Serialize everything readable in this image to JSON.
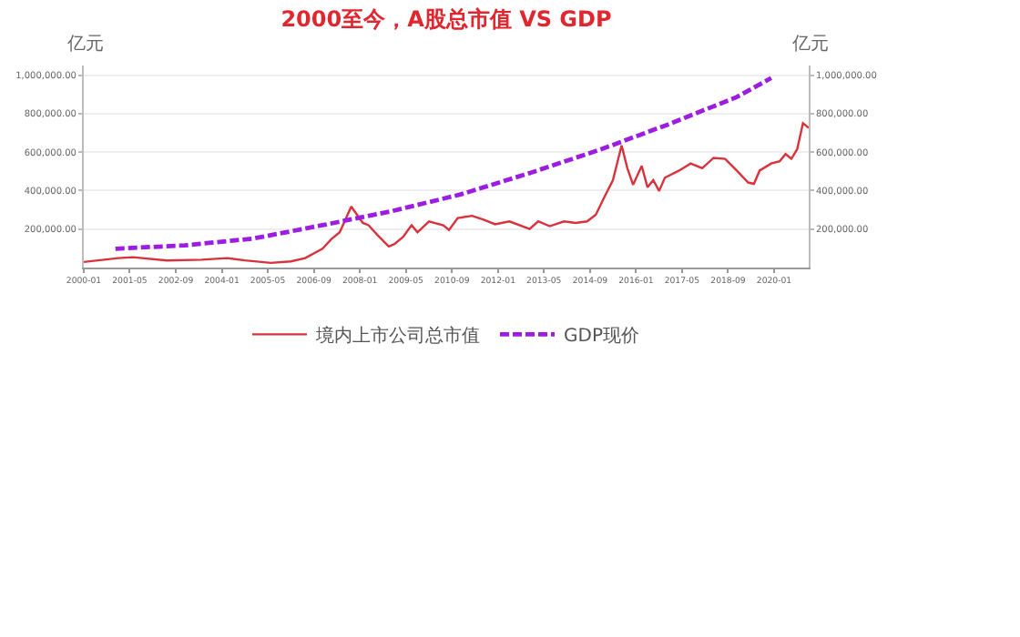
{
  "chart_data": {
    "type": "line",
    "title": "2000至今，A股总市值 VS GDP",
    "ylabel": "亿元",
    "y2label": "亿元",
    "series": [
      {
        "name": "境内上市公司总市值",
        "color": "#d8323c",
        "line_style": "solid",
        "x": [
          "2000-01",
          "2001-01",
          "2001-06",
          "2002-06",
          "2003-06",
          "2004-03",
          "2004-09",
          "2005-06",
          "2006-01",
          "2006-06",
          "2006-12",
          "2007-03",
          "2007-06",
          "2007-10",
          "2008-02",
          "2008-04",
          "2008-07",
          "2008-11",
          "2009-01",
          "2009-04",
          "2009-07",
          "2009-09",
          "2010-01",
          "2010-06",
          "2010-08",
          "2010-11",
          "2011-04",
          "2011-08",
          "2011-12",
          "2012-05",
          "2012-12",
          "2013-03",
          "2013-07",
          "2013-12",
          "2014-04",
          "2014-08",
          "2014-11",
          "2015-02",
          "2015-05",
          "2015-08",
          "2015-10",
          "2015-12",
          "2016-03",
          "2016-05",
          "2016-07",
          "2016-09",
          "2016-11",
          "2017-04",
          "2017-08",
          "2017-12",
          "2018-04",
          "2018-08",
          "2018-12",
          "2019-04",
          "2019-06",
          "2019-08",
          "2019-12",
          "2020-03",
          "2020-05",
          "2020-07",
          "2020-09",
          "2020-11",
          "2021-01"
        ],
        "values": [
          29000,
          49000,
          54000,
          37000,
          41000,
          49000,
          37000,
          24000,
          32000,
          49000,
          98000,
          146000,
          183000,
          317000,
          232000,
          220000,
          171000,
          110000,
          122000,
          159000,
          220000,
          183000,
          240000,
          220000,
          195000,
          257000,
          269000,
          249000,
          225000,
          240000,
          200000,
          240000,
          215000,
          240000,
          232000,
          240000,
          274000,
          368000,
          454000,
          635000,
          516000,
          430000,
          528000,
          417000,
          454000,
          398000,
          467000,
          504000,
          541000,
          516000,
          570000,
          565000,
          504000,
          442000,
          435000,
          504000,
          541000,
          553000,
          590000,
          565000,
          615000,
          750000,
          726000
        ]
      },
      {
        "name": "GDP现价",
        "color": "#9c1de0",
        "line_style": "dashed",
        "axis": "y2",
        "x": [
          "2000-12",
          "2002-12",
          "2004-12",
          "2006-12",
          "2008-12",
          "2010-12",
          "2012-12",
          "2014-12",
          "2016-12",
          "2018-12",
          "2019-12"
        ],
        "values": [
          98000,
          115000,
          151000,
          220000,
          293000,
          380000,
          491000,
          610000,
          743000,
          886000,
          985000
        ]
      }
    ],
    "xlim": [
      "2000-01",
      "2021-01"
    ],
    "xticks": [
      "2000-01",
      "2001-05",
      "2002-09",
      "2004-01",
      "2005-05",
      "2006-09",
      "2008-01",
      "2009-05",
      "2010-09",
      "2012-01",
      "2013-05",
      "2014-09",
      "2016-01",
      "2017-05",
      "2018-09",
      "2020-01"
    ],
    "ylim": [
      0,
      1050000
    ],
    "yticks": [
      {
        "value": 200000,
        "label": "200,000.00"
      },
      {
        "value": 400000,
        "label": "400,000.00"
      },
      {
        "value": 600000,
        "label": "600,000.00"
      },
      {
        "value": 800000,
        "label": "800,000.00"
      },
      {
        "value": 1000000,
        "label": "1,000,000.00"
      }
    ],
    "y2lim": [
      0,
      1050000
    ],
    "y2ticks": [
      {
        "value": 200000,
        "label": "200,000.00"
      },
      {
        "value": 400000,
        "label": "400,000.00"
      },
      {
        "value": 600000,
        "label": "600,000.00"
      },
      {
        "value": 800000,
        "label": "800,000.00"
      },
      {
        "value": 1000000,
        "label": "1,000,000.00"
      }
    ],
    "grid": "y",
    "legend": "bottom",
    "marker": "none"
  }
}
